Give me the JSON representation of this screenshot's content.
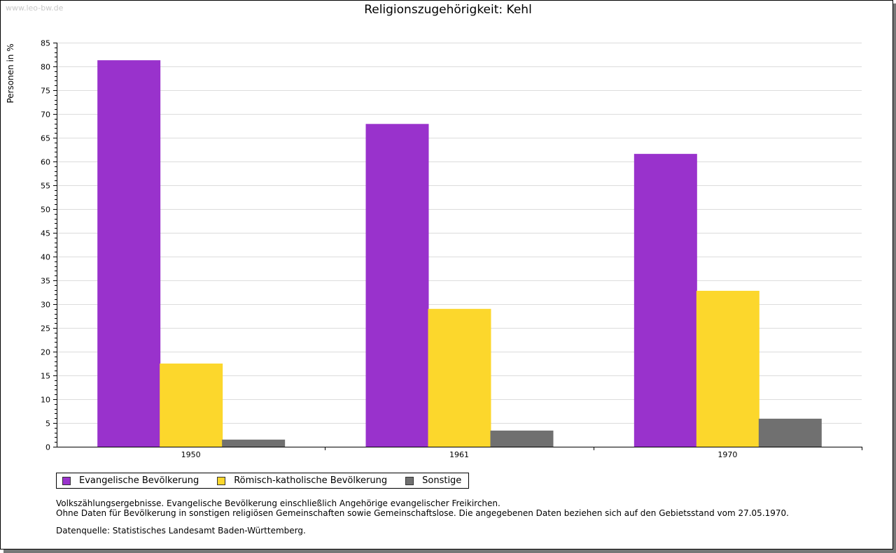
{
  "watermark": "www.leo-bw.de",
  "chart_data": {
    "type": "bar",
    "title": "Religionszugehörigkeit: Kehl",
    "xlabel": "",
    "ylabel": "Personen in %",
    "ylim": [
      0,
      85
    ],
    "yticks": [
      "0",
      "5",
      "10",
      "15",
      "20",
      "25",
      "30",
      "35",
      "40",
      "45",
      "50",
      "55",
      "60",
      "65",
      "70",
      "75",
      "80",
      "85"
    ],
    "grid": true,
    "categories": [
      "1950",
      "1961",
      "1970"
    ],
    "series": [
      {
        "name": "Evangelische Bevölkerung",
        "color": "#9932cc",
        "values": [
          81.3,
          67.9,
          61.6
        ]
      },
      {
        "name": "Römisch-katholische Bevölkerung",
        "color": "#fcd72c",
        "values": [
          17.5,
          29.0,
          32.8
        ]
      },
      {
        "name": "Sonstige",
        "color": "#707070",
        "values": [
          1.5,
          3.4,
          5.9
        ]
      }
    ],
    "legend_position": "bottom-left"
  },
  "notes": [
    "Volkszählungsergebnisse. Evangelische Bevölkerung einschließlich Angehörige evangelischer Freikirchen.",
    "Ohne Daten für Bevölkerung in sonstigen religiösen Gemeinschaften sowie Gemeinschaftslose. Die angegebenen Daten beziehen sich auf den Gebietsstand vom 27.05.1970."
  ],
  "source": "Datenquelle: Statistisches Landesamt Baden-Württemberg."
}
